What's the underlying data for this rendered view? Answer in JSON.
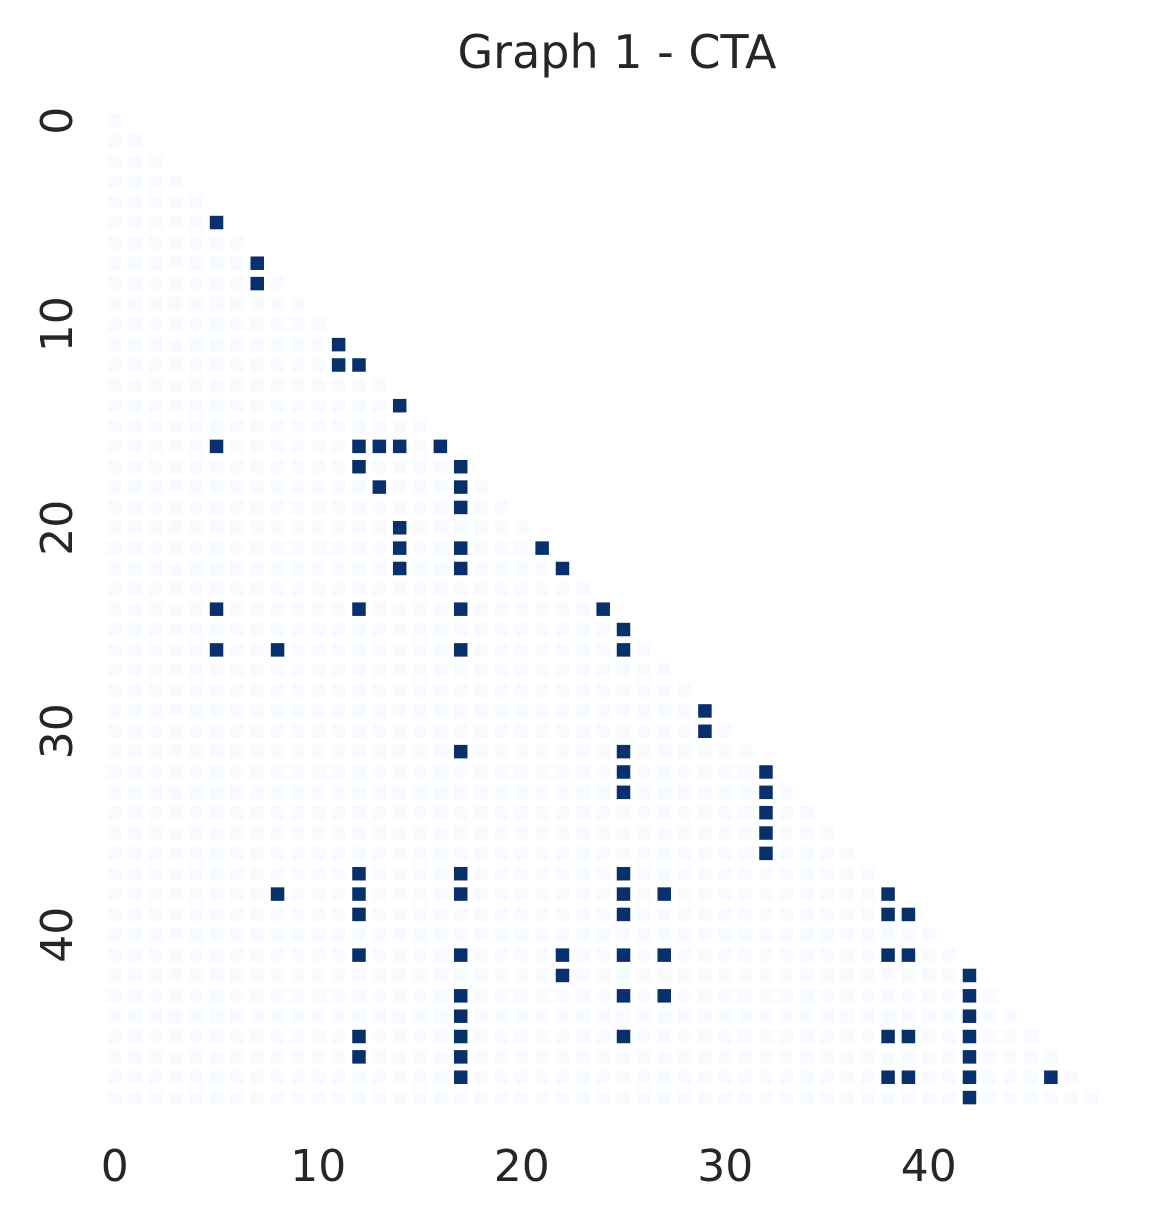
{
  "chart_data": {
    "type": "heatmap",
    "title": "Graph 1 - CTA",
    "xlabel": "",
    "ylabel": "",
    "n": 49,
    "mask": "lower-triangle-including-diagonal",
    "colormap": {
      "low": "#f7fbff",
      "high": "#08306b"
    },
    "values_range": [
      0,
      1
    ],
    "grid": false,
    "x_ticks": [
      0,
      10,
      20,
      30,
      40
    ],
    "y_ticks": [
      0,
      10,
      20,
      30,
      40
    ],
    "x_tick_labels": [
      "0",
      "10",
      "20",
      "30",
      "40"
    ],
    "y_tick_labels": [
      "0",
      "10",
      "20",
      "30",
      "40"
    ],
    "ones": [
      [
        5,
        5
      ],
      [
        7,
        7
      ],
      [
        8,
        7
      ],
      [
        11,
        11
      ],
      [
        12,
        11
      ],
      [
        12,
        12
      ],
      [
        14,
        14
      ],
      [
        16,
        5
      ],
      [
        16,
        12
      ],
      [
        16,
        13
      ],
      [
        16,
        14
      ],
      [
        16,
        16
      ],
      [
        17,
        12
      ],
      [
        17,
        17
      ],
      [
        18,
        13
      ],
      [
        18,
        17
      ],
      [
        19,
        17
      ],
      [
        20,
        14
      ],
      [
        21,
        14
      ],
      [
        21,
        17
      ],
      [
        21,
        21
      ],
      [
        22,
        14
      ],
      [
        22,
        17
      ],
      [
        22,
        22
      ],
      [
        24,
        5
      ],
      [
        24,
        12
      ],
      [
        24,
        17
      ],
      [
        24,
        24
      ],
      [
        25,
        25
      ],
      [
        26,
        5
      ],
      [
        26,
        8
      ],
      [
        26,
        17
      ],
      [
        26,
        25
      ],
      [
        29,
        29
      ],
      [
        30,
        29
      ],
      [
        31,
        17
      ],
      [
        31,
        25
      ],
      [
        32,
        25
      ],
      [
        32,
        32
      ],
      [
        33,
        25
      ],
      [
        33,
        32
      ],
      [
        34,
        32
      ],
      [
        35,
        32
      ],
      [
        36,
        32
      ],
      [
        37,
        12
      ],
      [
        37,
        17
      ],
      [
        37,
        25
      ],
      [
        38,
        8
      ],
      [
        38,
        12
      ],
      [
        38,
        17
      ],
      [
        38,
        25
      ],
      [
        38,
        27
      ],
      [
        38,
        38
      ],
      [
        39,
        12
      ],
      [
        39,
        25
      ],
      [
        39,
        38
      ],
      [
        39,
        39
      ],
      [
        41,
        12
      ],
      [
        41,
        17
      ],
      [
        41,
        22
      ],
      [
        41,
        25
      ],
      [
        41,
        27
      ],
      [
        41,
        38
      ],
      [
        41,
        39
      ],
      [
        42,
        22
      ],
      [
        42,
        42
      ],
      [
        43,
        17
      ],
      [
        43,
        25
      ],
      [
        43,
        27
      ],
      [
        43,
        42
      ],
      [
        44,
        17
      ],
      [
        44,
        42
      ],
      [
        45,
        12
      ],
      [
        45,
        17
      ],
      [
        45,
        25
      ],
      [
        45,
        38
      ],
      [
        45,
        39
      ],
      [
        45,
        42
      ],
      [
        46,
        12
      ],
      [
        46,
        17
      ],
      [
        46,
        42
      ],
      [
        47,
        17
      ],
      [
        47,
        38
      ],
      [
        47,
        39
      ],
      [
        47,
        42
      ],
      [
        47,
        46
      ],
      [
        48,
        42
      ]
    ]
  }
}
